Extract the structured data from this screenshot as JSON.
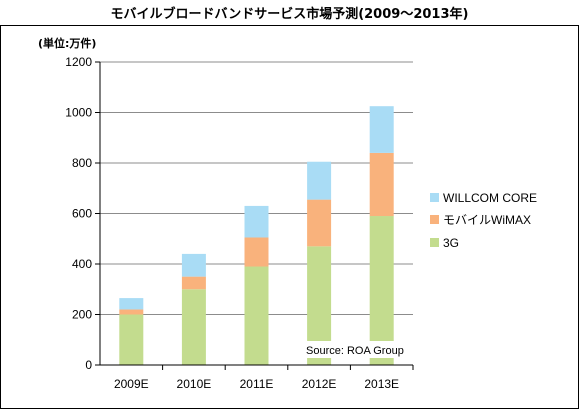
{
  "title": "モバイルブロードバンドサービス市場予測(2009〜2013年)",
  "unit_label": "(単位:万件)",
  "source": "Source: ROA Group",
  "colors": {
    "core": "#a9dcf5",
    "wimax": "#f9b27c",
    "g3": "#c3dc8e"
  },
  "chart_data": {
    "type": "bar",
    "stacked": true,
    "categories": [
      "2009E",
      "2010E",
      "2011E",
      "2012E",
      "2013E"
    ],
    "series": [
      {
        "name": "3G",
        "values": [
          200,
          300,
          390,
          470,
          590
        ]
      },
      {
        "name": "モバイルWiMAX",
        "values": [
          20,
          50,
          115,
          185,
          250
        ]
      },
      {
        "name": "WILLCOM CORE",
        "values": [
          45,
          90,
          125,
          150,
          185
        ]
      }
    ],
    "ylim": [
      0,
      1200
    ],
    "yticks": [
      0,
      200,
      400,
      600,
      800,
      1000,
      1200
    ],
    "legend": "right",
    "legend_order": [
      "WILLCOM CORE",
      "モバイルWiMAX",
      "3G"
    ],
    "grid": true
  }
}
